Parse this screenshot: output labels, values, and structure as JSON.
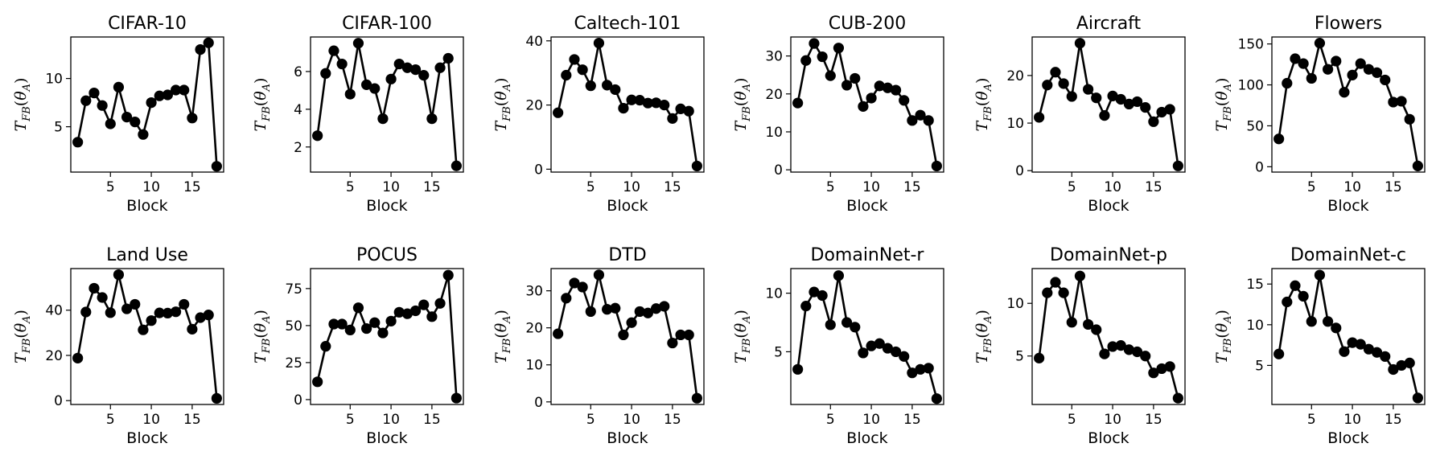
{
  "figure": {
    "xlabel": "Block",
    "ylabel": {
      "main": "T",
      "sub": "FB",
      "open": "(",
      "theta": "θ",
      "theta_sub": "A",
      "close": ")"
    },
    "line_color": "#000000",
    "marker_color": "#000000"
  },
  "chart_data": [
    {
      "type": "line",
      "title": "CIFAR-10",
      "x": [
        1,
        2,
        3,
        4,
        5,
        6,
        7,
        8,
        9,
        10,
        11,
        12,
        13,
        14,
        15,
        16,
        17,
        18
      ],
      "y": [
        3.4,
        7.7,
        8.5,
        7.2,
        5.3,
        9.1,
        6.0,
        5.5,
        4.2,
        7.5,
        8.2,
        8.3,
        8.8,
        8.8,
        5.9,
        13.0,
        13.7,
        0.9
      ],
      "xlim": [
        0.15,
        18.85
      ],
      "ylim": [
        0.3,
        14.3
      ],
      "xticks": [
        5,
        10,
        15
      ],
      "yticks": [
        5,
        10
      ],
      "xlabel": "Block",
      "ylabel": "T_FB(θ_A)"
    },
    {
      "type": "line",
      "title": "CIFAR-100",
      "x": [
        1,
        2,
        3,
        4,
        5,
        6,
        7,
        8,
        9,
        10,
        11,
        12,
        13,
        14,
        15,
        16,
        17,
        18
      ],
      "y": [
        2.6,
        5.9,
        7.1,
        6.4,
        4.8,
        7.5,
        5.3,
        5.1,
        3.5,
        5.6,
        6.4,
        6.2,
        6.1,
        5.8,
        3.5,
        6.2,
        6.7,
        1.0
      ],
      "xlim": [
        0.15,
        18.85
      ],
      "ylim": [
        0.67,
        7.83
      ],
      "xticks": [
        5,
        10,
        15
      ],
      "yticks": [
        2,
        4,
        6
      ],
      "xlabel": "Block",
      "ylabel": "T_FB(θ_A)"
    },
    {
      "type": "line",
      "title": "Caltech-101",
      "x": [
        1,
        2,
        3,
        4,
        5,
        6,
        7,
        8,
        9,
        10,
        11,
        12,
        13,
        14,
        15,
        16,
        17,
        18
      ],
      "y": [
        17.6,
        29.3,
        34.2,
        31.0,
        26.0,
        39.3,
        26.2,
        24.8,
        19.0,
        21.6,
        21.5,
        20.6,
        20.7,
        20.0,
        15.8,
        18.8,
        18.1,
        1.0
      ],
      "xlim": [
        0.15,
        18.85
      ],
      "ylim": [
        -0.9,
        41.2
      ],
      "xticks": [
        5,
        10,
        15
      ],
      "yticks": [
        0,
        20,
        40
      ],
      "xlabel": "Block",
      "ylabel": "T_FB(θ_A)"
    },
    {
      "type": "line",
      "title": "CUB-200",
      "x": [
        1,
        2,
        3,
        4,
        5,
        6,
        7,
        8,
        9,
        10,
        11,
        12,
        13,
        14,
        15,
        16,
        17,
        18
      ],
      "y": [
        17.6,
        28.8,
        33.3,
        29.8,
        24.8,
        32.1,
        22.3,
        24.1,
        16.7,
        18.9,
        22.1,
        21.6,
        21.0,
        18.3,
        13.0,
        14.4,
        13.0,
        1.0
      ],
      "xlim": [
        0.15,
        18.85
      ],
      "ylim": [
        -0.6,
        35.0
      ],
      "xticks": [
        5,
        10,
        15
      ],
      "yticks": [
        0,
        10,
        20,
        30
      ],
      "xlabel": "Block",
      "ylabel": "T_FB(θ_A)"
    },
    {
      "type": "line",
      "title": "Aircraft",
      "x": [
        1,
        2,
        3,
        4,
        5,
        6,
        7,
        8,
        9,
        10,
        11,
        12,
        13,
        14,
        15,
        16,
        17,
        18
      ],
      "y": [
        11.2,
        18.0,
        20.7,
        18.3,
        15.6,
        26.8,
        17.1,
        15.3,
        11.6,
        15.7,
        15.0,
        14.0,
        14.5,
        13.3,
        10.3,
        12.3,
        12.9,
        1.0
      ],
      "xlim": [
        0.15,
        18.85
      ],
      "ylim": [
        -0.3,
        28.1
      ],
      "xticks": [
        5,
        10,
        15
      ],
      "yticks": [
        0,
        10,
        20
      ],
      "xlabel": "Block",
      "ylabel": "T_FB(θ_A)"
    },
    {
      "type": "line",
      "title": "Flowers",
      "x": [
        1,
        2,
        3,
        4,
        5,
        6,
        7,
        8,
        9,
        10,
        11,
        12,
        13,
        14,
        15,
        16,
        17,
        18
      ],
      "y": [
        34,
        102,
        132,
        126,
        108,
        151,
        119,
        129,
        91,
        112,
        126,
        119,
        115,
        106,
        79,
        80,
        58,
        1
      ],
      "xlim": [
        0.15,
        18.85
      ],
      "ylim": [
        -6.5,
        158.5
      ],
      "xticks": [
        5,
        10,
        15
      ],
      "yticks": [
        0,
        50,
        100,
        150
      ],
      "xlabel": "Block",
      "ylabel": "T_FB(θ_A)"
    },
    {
      "type": "line",
      "title": "Land Use",
      "x": [
        1,
        2,
        3,
        4,
        5,
        6,
        7,
        8,
        9,
        10,
        11,
        12,
        13,
        14,
        15,
        16,
        17,
        18
      ],
      "y": [
        18.8,
        39.2,
        49.7,
        45.6,
        38.9,
        55.7,
        40.6,
        42.6,
        31.3,
        35.4,
        38.8,
        38.7,
        39.3,
        42.6,
        31.6,
        36.7,
        37.9,
        1.0
      ],
      "xlim": [
        0.15,
        18.85
      ],
      "ylim": [
        -1.7,
        58.4
      ],
      "xticks": [
        5,
        10,
        15
      ],
      "yticks": [
        0,
        20,
        40
      ],
      "xlabel": "Block",
      "ylabel": "T_FB(θ_A)"
    },
    {
      "type": "line",
      "title": "POCUS",
      "x": [
        1,
        2,
        3,
        4,
        5,
        6,
        7,
        8,
        9,
        10,
        11,
        12,
        13,
        14,
        15,
        16,
        17,
        18
      ],
      "y": [
        12,
        36,
        51,
        51,
        47,
        62,
        48,
        52,
        45,
        53,
        59,
        58,
        60,
        64,
        56,
        65,
        84,
        1
      ],
      "xlim": [
        0.15,
        18.85
      ],
      "ylim": [
        -3.3,
        88.5
      ],
      "xticks": [
        5,
        10,
        15
      ],
      "yticks": [
        0,
        25,
        50,
        75
      ],
      "xlabel": "Block",
      "ylabel": "T_FB(θ_A)"
    },
    {
      "type": "line",
      "title": "DTD",
      "x": [
        1,
        2,
        3,
        4,
        5,
        6,
        7,
        8,
        9,
        10,
        11,
        12,
        13,
        14,
        15,
        16,
        17,
        18
      ],
      "y": [
        18.4,
        28.0,
        32.1,
        31.0,
        24.4,
        34.3,
        25.0,
        25.3,
        18.1,
        21.4,
        24.4,
        24.0,
        25.2,
        25.8,
        15.9,
        18.1,
        18.1,
        1.0
      ],
      "xlim": [
        0.15,
        18.85
      ],
      "ylim": [
        -0.7,
        36.0
      ],
      "xticks": [
        5,
        10,
        15
      ],
      "yticks": [
        0,
        10,
        20,
        30
      ],
      "xlabel": "Block",
      "ylabel": "T_FB(θ_A)"
    },
    {
      "type": "line",
      "title": "DomainNet-r",
      "x": [
        1,
        2,
        3,
        4,
        5,
        6,
        7,
        8,
        9,
        10,
        11,
        12,
        13,
        14,
        15,
        16,
        17,
        18
      ],
      "y": [
        3.5,
        8.9,
        10.1,
        9.8,
        7.3,
        11.5,
        7.5,
        7.1,
        4.9,
        5.5,
        5.7,
        5.3,
        5.0,
        4.6,
        3.2,
        3.5,
        3.6,
        1.0
      ],
      "xlim": [
        0.15,
        18.85
      ],
      "ylim": [
        0.5,
        12.1
      ],
      "xticks": [
        5,
        10,
        15
      ],
      "yticks": [
        5,
        10
      ],
      "xlabel": "Block",
      "ylabel": "T_FB(θ_A)"
    },
    {
      "type": "line",
      "title": "DomainNet-p",
      "x": [
        1,
        2,
        3,
        4,
        5,
        6,
        7,
        8,
        9,
        10,
        11,
        12,
        13,
        14,
        15,
        16,
        17,
        18
      ],
      "y": [
        4.8,
        11.0,
        12.0,
        11.0,
        8.2,
        12.6,
        8.0,
        7.5,
        5.2,
        5.9,
        6.0,
        5.6,
        5.4,
        5.0,
        3.4,
        3.8,
        4.0,
        1.0
      ],
      "xlim": [
        0.15,
        18.85
      ],
      "ylim": [
        0.4,
        13.3
      ],
      "xticks": [
        5,
        10,
        15
      ],
      "yticks": [
        5,
        10
      ],
      "xlabel": "Block",
      "ylabel": "T_FB(θ_A)"
    },
    {
      "type": "line",
      "title": "DomainNet-c",
      "x": [
        1,
        2,
        3,
        4,
        5,
        6,
        7,
        8,
        9,
        10,
        11,
        12,
        13,
        14,
        15,
        16,
        17,
        18
      ],
      "y": [
        6.4,
        12.8,
        14.8,
        13.5,
        10.4,
        16.1,
        10.4,
        9.6,
        6.7,
        7.8,
        7.6,
        7.0,
        6.6,
        6.1,
        4.5,
        5.0,
        5.3,
        1.0
      ],
      "xlim": [
        0.15,
        18.85
      ],
      "ylim": [
        0.2,
        16.9
      ],
      "xticks": [
        5,
        10,
        15
      ],
      "yticks": [
        5,
        10,
        15
      ],
      "xlabel": "Block",
      "ylabel": "T_FB(θ_A)"
    }
  ]
}
